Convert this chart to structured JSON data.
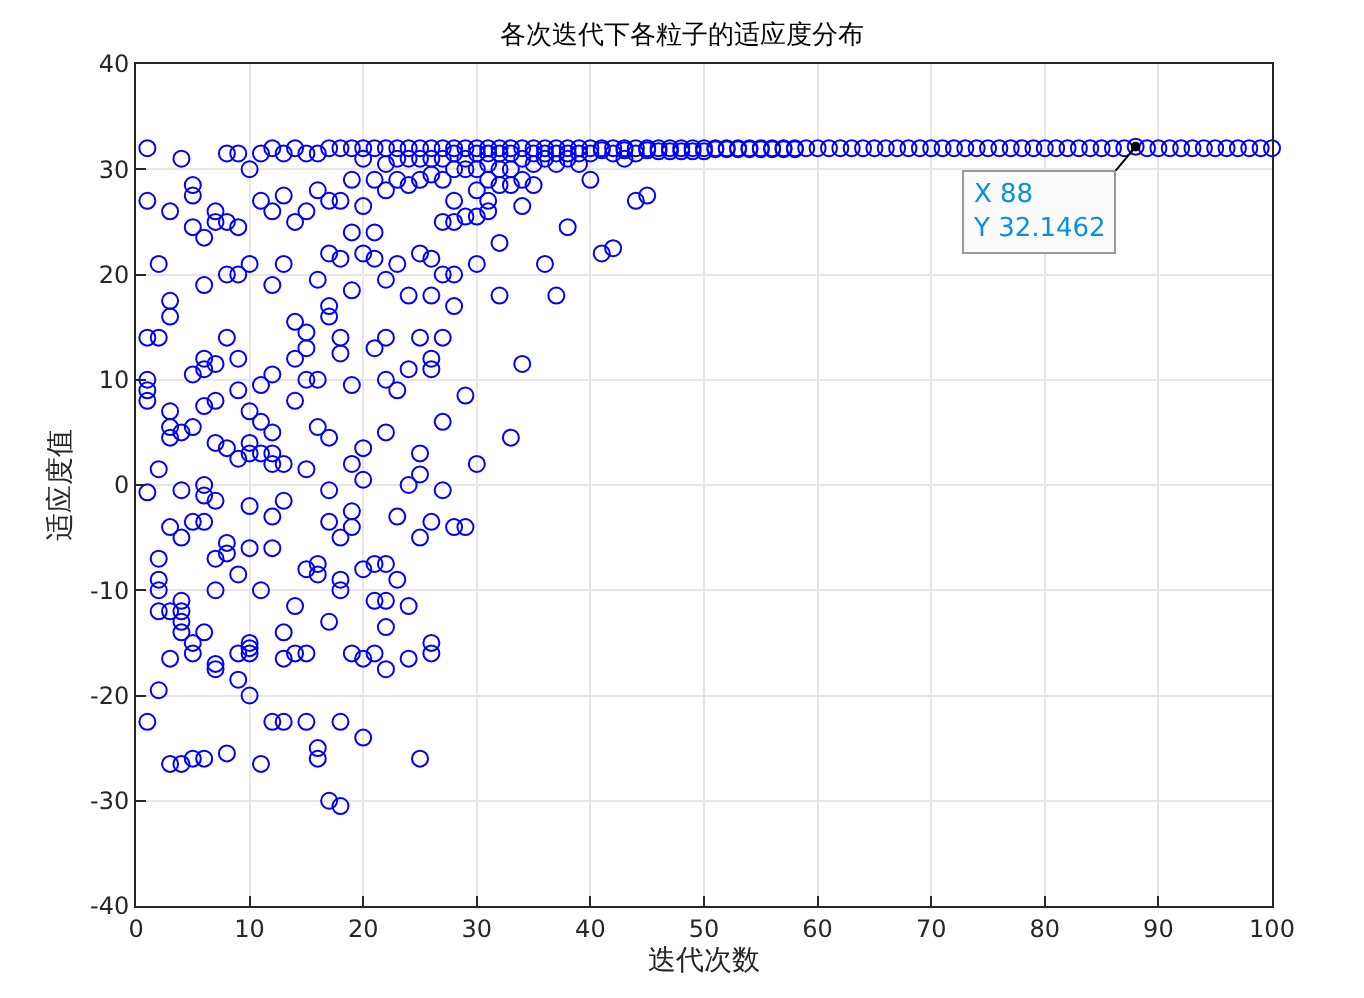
{
  "chart_data": {
    "type": "scatter",
    "title": "各次迭代下各粒子的适应度分布",
    "xlabel": "迭代次数",
    "ylabel": "适应度值",
    "xlim": [
      0,
      100
    ],
    "xticks": [
      0,
      10,
      20,
      30,
      40,
      50,
      60,
      70,
      80,
      90,
      100
    ],
    "ylim": [
      -40,
      40
    ],
    "yticks": [
      -40,
      -30,
      -20,
      -10,
      0,
      10,
      20,
      30,
      40
    ],
    "grid": true,
    "marker": "circle",
    "annotations": [
      {
        "text": "X 88\nY 32.1462",
        "x": 88,
        "y": 32.1462
      }
    ],
    "series": [
      {
        "color": "#0000ff",
        "x": [
          1,
          1,
          1,
          1,
          1,
          1,
          1,
          1,
          2,
          2,
          2,
          2,
          2,
          2,
          2,
          2,
          3,
          3,
          3,
          3,
          3,
          3,
          3,
          3,
          3,
          3,
          4,
          4,
          4,
          4,
          4,
          4,
          4,
          4,
          4,
          5,
          5,
          5,
          5,
          5,
          5,
          5,
          5,
          5,
          6,
          6,
          6,
          6,
          6,
          6,
          6,
          6,
          6,
          6,
          7,
          7,
          7,
          7,
          7,
          7,
          7,
          7,
          7,
          7,
          8,
          8,
          8,
          8,
          8,
          8,
          8,
          8,
          9,
          9,
          9,
          9,
          9,
          9,
          9,
          9,
          9,
          10,
          10,
          10,
          10,
          10,
          10,
          10,
          10,
          10,
          10,
          10,
          11,
          11,
          11,
          11,
          11,
          11,
          11,
          12,
          12,
          12,
          12,
          12,
          12,
          12,
          12,
          12,
          12,
          13,
          13,
          13,
          13,
          13,
          13,
          13,
          13,
          14,
          14,
          14,
          14,
          14,
          14,
          14,
          15,
          15,
          15,
          15,
          15,
          15,
          15,
          15,
          15,
          16,
          16,
          16,
          16,
          16,
          16,
          16,
          16,
          16,
          17,
          17,
          17,
          17,
          17,
          17,
          17,
          17,
          17,
          17,
          18,
          18,
          18,
          18,
          18,
          18,
          18,
          18,
          18,
          18,
          19,
          19,
          19,
          19,
          19,
          19,
          19,
          19,
          19,
          20,
          20,
          20,
          20,
          20,
          20,
          20,
          20,
          20,
          21,
          21,
          21,
          21,
          21,
          21,
          21,
          21,
          22,
          22,
          22,
          22,
          22,
          22,
          22,
          22,
          22,
          22,
          22,
          23,
          23,
          23,
          23,
          23,
          23,
          23,
          24,
          24,
          24,
          24,
          24,
          24,
          24,
          24,
          25,
          25,
          25,
          25,
          25,
          25,
          25,
          25,
          25,
          26,
          26,
          26,
          26,
          26,
          26,
          26,
          26,
          26,
          26,
          27,
          27,
          27,
          27,
          27,
          27,
          27,
          27,
          28,
          28,
          28,
          28,
          28,
          28,
          28,
          28,
          29,
          29,
          29,
          29,
          29,
          29,
          30,
          30,
          30,
          30,
          30,
          30,
          30,
          31,
          31,
          31,
          31,
          31,
          31,
          32,
          32,
          32,
          32,
          32,
          32,
          33,
          33,
          33,
          33,
          33,
          34,
          34,
          34,
          34,
          34,
          35,
          35,
          35,
          35,
          36,
          36,
          36,
          36,
          37,
          37,
          37,
          37,
          38,
          38,
          38,
          38,
          39,
          39,
          39,
          40,
          40,
          40,
          41,
          41,
          41,
          42,
          42,
          42,
          43,
          43,
          43,
          44,
          44,
          44,
          45,
          45,
          45,
          46,
          46,
          47,
          47,
          48,
          48,
          49,
          49,
          50,
          50,
          51,
          51,
          52,
          52,
          53,
          53,
          54,
          54,
          55,
          55,
          56,
          56,
          57,
          57,
          58,
          58,
          59,
          60,
          61,
          62,
          63,
          64,
          65,
          66,
          67,
          68,
          69,
          70,
          71,
          72,
          73,
          74,
          75,
          76,
          77,
          78,
          79,
          80,
          81,
          82,
          83,
          84,
          85,
          86,
          87,
          88,
          89,
          90,
          91,
          92,
          93,
          94,
          95,
          96,
          97,
          98,
          99,
          100
        ],
        "values": [
          32,
          27,
          14,
          10,
          9,
          8,
          -0.7,
          -22.5,
          21,
          14,
          1.5,
          -7,
          -9,
          -10,
          -12,
          -19.5,
          26,
          17.5,
          16,
          7,
          5.5,
          4.5,
          -4,
          -12,
          -16.5,
          -26.5,
          31,
          5,
          -0.5,
          -5,
          -11,
          -12,
          -13,
          -14,
          -26.5,
          28.5,
          27.5,
          24.5,
          10.5,
          5.5,
          -3.5,
          -15,
          -16,
          -26,
          23.5,
          19,
          12,
          11,
          7.5,
          0,
          -1,
          -3.5,
          -14,
          -26,
          26,
          25,
          11.5,
          8,
          4,
          -1.5,
          -7,
          -10,
          -17,
          -17.5,
          31.5,
          25,
          20,
          14,
          3.5,
          -5.5,
          -6.5,
          -25.5,
          31.5,
          24.5,
          20,
          12,
          9,
          2.5,
          -8.5,
          -16,
          -18.5,
          30,
          21,
          7,
          4,
          3,
          -2,
          -6,
          -15,
          -15.5,
          -16,
          -20,
          31.5,
          27,
          9.5,
          6,
          3,
          -10,
          -26.5,
          32,
          26,
          19,
          10.5,
          5,
          3,
          2,
          -3,
          -6,
          -22.5,
          31.5,
          27.5,
          21,
          2,
          -1.5,
          -14,
          -16.5,
          -22.5,
          32,
          25,
          15.5,
          12,
          8,
          -11.5,
          -16,
          31.5,
          26,
          14.5,
          13,
          10,
          1.5,
          -8,
          -16,
          -22.5,
          31.5,
          28,
          19.5,
          10,
          5.5,
          -7.5,
          -8.5,
          -25,
          -26,
          32,
          27,
          22,
          17,
          16,
          4.5,
          -0.5,
          -3.5,
          -13,
          -30,
          32,
          27,
          21.5,
          14,
          12.5,
          -5,
          -9,
          -10,
          -22.5,
          -30.5,
          32,
          29,
          24,
          18.5,
          9.5,
          2,
          -2.5,
          -4,
          -16,
          32,
          31,
          26.5,
          22,
          0.5,
          3.5,
          -8,
          -16.5,
          -24,
          32,
          29,
          24,
          21.5,
          13,
          -7.5,
          -11,
          -16,
          32,
          30.5,
          28,
          19.5,
          14,
          10,
          5,
          -7.5,
          -11,
          -17.5,
          -13.5,
          32,
          31,
          29,
          21,
          9,
          -3,
          -9,
          32,
          31,
          28.5,
          18,
          11,
          0,
          -11.5,
          -16.5,
          32,
          31,
          29,
          22,
          14,
          3,
          1,
          -5,
          -26,
          32,
          31,
          29.5,
          21.5,
          18,
          12,
          11,
          -3.5,
          -15,
          -16,
          32,
          31,
          29,
          25,
          20,
          14,
          6,
          -0.5,
          32,
          31.5,
          30,
          27,
          25,
          20,
          17,
          -4,
          32,
          31,
          30,
          25.5,
          8.5,
          -4,
          32,
          31.5,
          30,
          28,
          25.5,
          21,
          2,
          32,
          31.5,
          30.5,
          29,
          27,
          26,
          32,
          31.5,
          30,
          28.5,
          23,
          18,
          32,
          31.5,
          30,
          28.5,
          4.5,
          32,
          31,
          29,
          26.5,
          11.5,
          32,
          31.5,
          30.5,
          28.5,
          32,
          31.5,
          31,
          21,
          32,
          31.5,
          30.5,
          18,
          32,
          31.5,
          31,
          24.5,
          32,
          31.5,
          30.5,
          32,
          31.5,
          29,
          32,
          31.8,
          22,
          32,
          31.5,
          22.5,
          32,
          31.8,
          31,
          32,
          31.5,
          27,
          32,
          31.8,
          27.5,
          32,
          31.7,
          32,
          31.7,
          32,
          31.7,
          32,
          31.7,
          32,
          31.7,
          32,
          31.9,
          32,
          31.9,
          32,
          31.9,
          32,
          31.9,
          32,
          31.9,
          32,
          31.9,
          32,
          31.9,
          32,
          31.9,
          32,
          32,
          32,
          32,
          32,
          32,
          32,
          32,
          32,
          32,
          32,
          32,
          32,
          32,
          32,
          32,
          32,
          32,
          32,
          32,
          32,
          32,
          32,
          32,
          32,
          32,
          32,
          32,
          32,
          32.1462,
          32,
          32,
          32,
          32,
          32,
          32,
          32,
          32,
          32,
          32,
          32,
          32
        ]
      }
    ]
  }
}
